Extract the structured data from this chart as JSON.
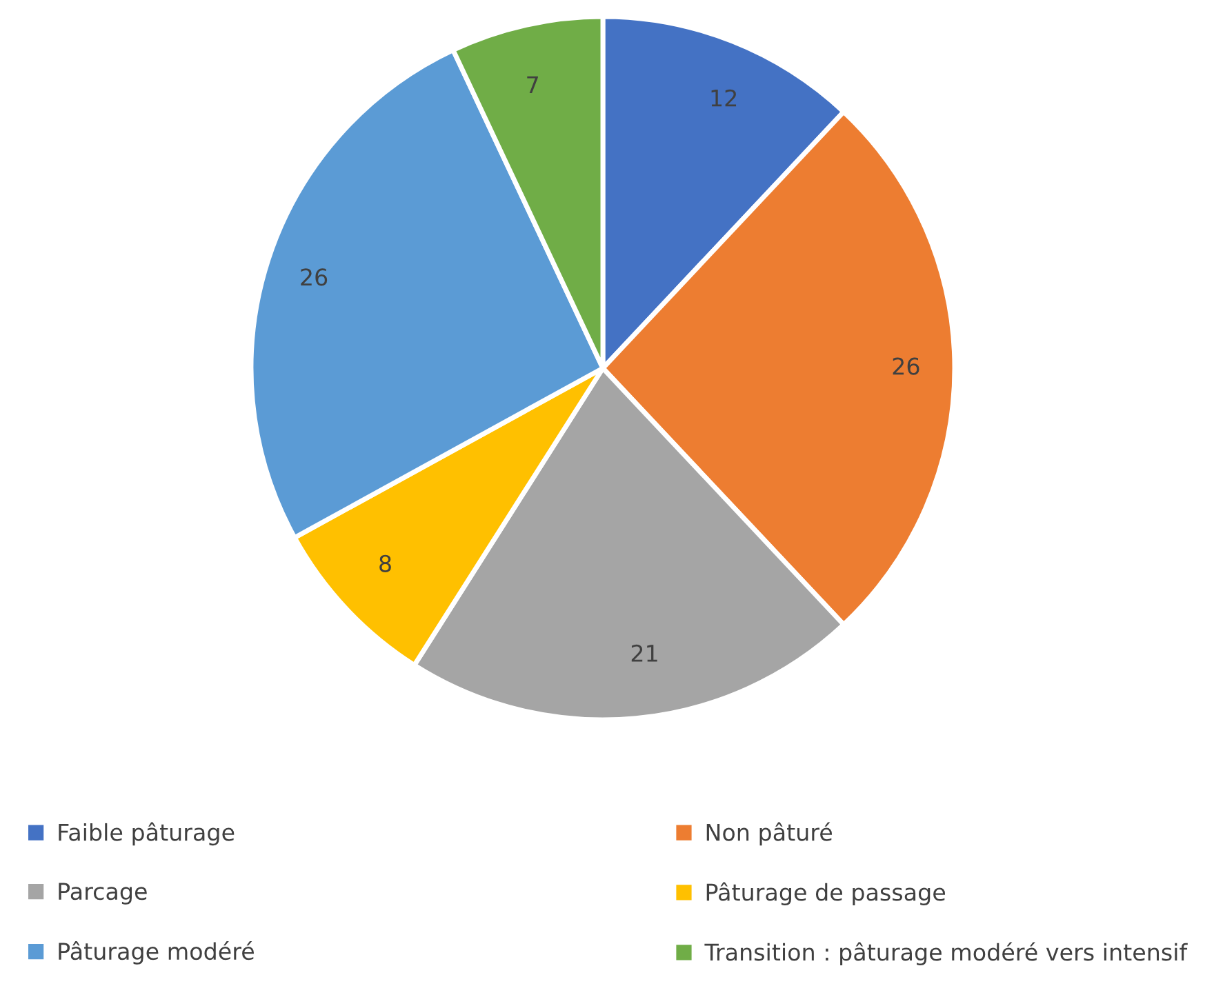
{
  "chart_data": {
    "type": "pie",
    "categories": [
      "Faible pâturage",
      "Non pâturé",
      "Parcage",
      "Pâturage de passage",
      "Pâturage modéré",
      "Transition : pâturage modéré vers intensif"
    ],
    "values": [
      12,
      26,
      21,
      8,
      26,
      7
    ],
    "colors": [
      "#4472c4",
      "#ed7d31",
      "#a5a5a5",
      "#ffc000",
      "#5b9bd5",
      "#70ad47"
    ],
    "data_labels": true,
    "legend": "bottom"
  }
}
